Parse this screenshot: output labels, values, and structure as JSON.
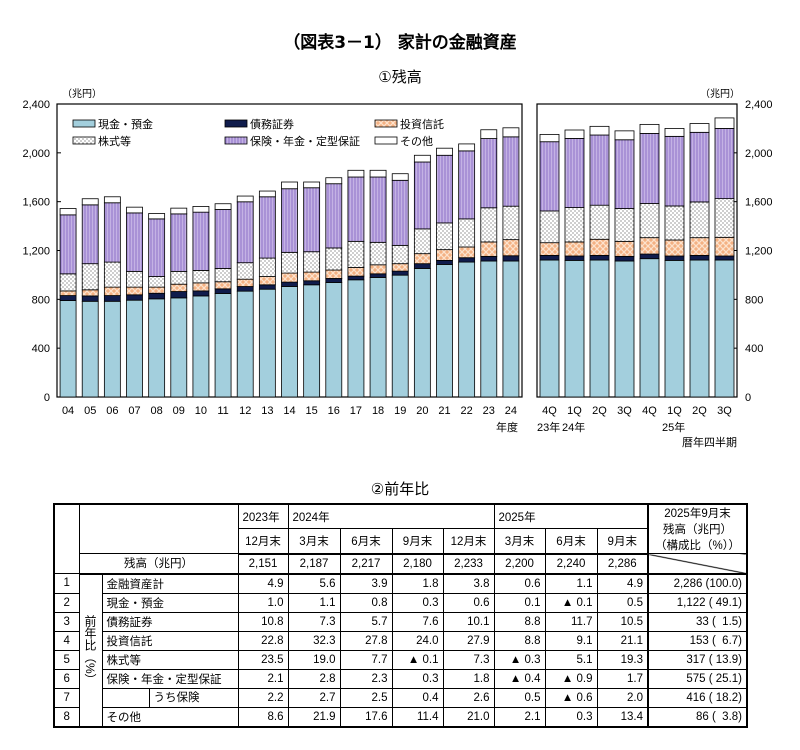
{
  "title": "（図表3－1） 家計の金融資産",
  "chart_section_title": "①残高",
  "table_section_title": "②前年比",
  "colors": {
    "cash": "#a3cfdd",
    "bonds": "#101c4c",
    "investment_trusts": "#f4b183",
    "stocks": "#ffffff",
    "insurance": "#b8a3dc",
    "other": "#ffffff"
  },
  "legend": [
    "現金・預金",
    "債務証券",
    "投資信託",
    "株式等",
    "保険・年金・定型保証",
    "その他"
  ],
  "chart_data": [
    {
      "type": "bar",
      "stacked": true,
      "unit_label": "（兆円）",
      "xlabel": "年度",
      "ylim": [
        0,
        2400
      ],
      "yticks": [
        "0",
        "400",
        "800",
        "1,200",
        "1,600",
        "2,000",
        "2,400"
      ],
      "categories": [
        "04",
        "05",
        "06",
        "07",
        "08",
        "09",
        "10",
        "11",
        "12",
        "13",
        "14",
        "15",
        "16",
        "17",
        "18",
        "19",
        "20",
        "21",
        "22",
        "23",
        "24"
      ],
      "series": [
        {
          "name": "現金・預金",
          "values": [
            790,
            784,
            784,
            793,
            804,
            812,
            828,
            848,
            867,
            883,
            905,
            919,
            938,
            960,
            979,
            998,
            1053,
            1086,
            1105,
            1114,
            1114
          ]
        },
        {
          "name": "債務証券",
          "values": [
            41,
            44,
            47,
            44,
            46,
            52,
            41,
            38,
            38,
            36,
            36,
            33,
            33,
            30,
            30,
            33,
            39,
            33,
            36,
            38,
            43
          ]
        },
        {
          "name": "投資信託",
          "values": [
            38,
            50,
            69,
            63,
            50,
            60,
            66,
            58,
            60,
            68,
            74,
            71,
            69,
            71,
            74,
            61,
            82,
            88,
            88,
            118,
            132
          ]
        },
        {
          "name": "株式等",
          "values": [
            140,
            214,
            205,
            129,
            87,
            105,
            102,
            109,
            135,
            151,
            170,
            167,
            181,
            214,
            184,
            150,
            203,
            219,
            230,
            280,
            274
          ]
        },
        {
          "name": "保険・年金・定型保証",
          "values": [
            483,
            482,
            486,
            479,
            472,
            471,
            477,
            483,
            499,
            502,
            521,
            524,
            526,
            527,
            535,
            533,
            548,
            554,
            557,
            567,
            568
          ]
        },
        {
          "name": "その他",
          "values": [
            52,
            50,
            49,
            47,
            44,
            47,
            47,
            47,
            47,
            47,
            55,
            47,
            49,
            55,
            55,
            54,
            55,
            58,
            57,
            72,
            74
          ]
        }
      ]
    },
    {
      "type": "bar",
      "stacked": true,
      "unit_label": "（兆円）",
      "xlabel": "暦年四半期",
      "ylim": [
        0,
        2400
      ],
      "yticks": [
        "0",
        "400",
        "800",
        "1,200",
        "1,600",
        "2,000",
        "2,400"
      ],
      "categories": [
        "4Q",
        "1Q",
        "2Q",
        "3Q",
        "4Q",
        "1Q",
        "2Q",
        "3Q"
      ],
      "year_labels": [
        "23年",
        "24年",
        "25年"
      ],
      "series": [
        {
          "name": "現金・預金",
          "values": [
            1122,
            1119,
            1122,
            1114,
            1133,
            1119,
            1122,
            1122
          ]
        },
        {
          "name": "債務証券",
          "values": [
            38,
            36,
            38,
            38,
            38,
            36,
            38,
            33
          ]
        },
        {
          "name": "投資信託",
          "values": [
            104,
            115,
            132,
            123,
            134,
            131,
            145,
            153
          ]
        },
        {
          "name": "株式等",
          "values": [
            260,
            282,
            279,
            269,
            280,
            279,
            293,
            317
          ]
        },
        {
          "name": "保険・年金・定型保証",
          "values": [
            567,
            566,
            575,
            563,
            574,
            570,
            570,
            575
          ]
        },
        {
          "name": "その他",
          "values": [
            60,
            69,
            71,
            73,
            74,
            65,
            72,
            86
          ]
        }
      ]
    }
  ],
  "table": {
    "year_groups": [
      {
        "label": "2023年",
        "span": 1
      },
      {
        "label": "2024年",
        "span": 4
      },
      {
        "label": "2025年",
        "span": 3
      }
    ],
    "months": [
      "12月末",
      "3月末",
      "6月末",
      "9月末",
      "12月末",
      "3月末",
      "6月末",
      "9月末"
    ],
    "last_header": [
      "2025年9月末",
      "残高（兆円）",
      "（構成比（%））"
    ],
    "balance_label": "残高（兆円）",
    "balance_values": [
      "2,151",
      "2,187",
      "2,217",
      "2,180",
      "2,233",
      "2,200",
      "2,240",
      "2,286"
    ],
    "side_label": "前年比（%）",
    "rows": [
      {
        "num": "1",
        "label": "金融資産計",
        "values": [
          "4.9",
          "5.6",
          "3.9",
          "1.8",
          "3.8",
          "0.6",
          "1.1",
          "4.9"
        ],
        "last": "2,286 (100.0)"
      },
      {
        "num": "2",
        "label": "現金・預金",
        "values": [
          "1.0",
          "1.1",
          "0.8",
          "0.3",
          "0.6",
          "0.1",
          "▲ 0.1",
          "0.5"
        ],
        "last": "1,122 ( 49.1)"
      },
      {
        "num": "3",
        "label": "債務証券",
        "values": [
          "10.8",
          "7.3",
          "5.7",
          "7.6",
          "10.1",
          "8.8",
          "11.7",
          "10.5"
        ],
        "last": "33 (  1.5)"
      },
      {
        "num": "4",
        "label": "投資信託",
        "values": [
          "22.8",
          "32.3",
          "27.8",
          "24.0",
          "27.9",
          "8.8",
          "9.1",
          "21.1"
        ],
        "last": "153 (  6.7)"
      },
      {
        "num": "5",
        "label": "株式等",
        "values": [
          "23.5",
          "19.0",
          "7.7",
          "▲ 0.1",
          "7.3",
          "▲ 0.3",
          "5.1",
          "19.3"
        ],
        "last": "317 ( 13.9)"
      },
      {
        "num": "6",
        "label": "保険・年金・定型保証",
        "values": [
          "2.1",
          "2.8",
          "2.3",
          "0.3",
          "1.8",
          "▲ 0.4",
          "▲ 0.9",
          "1.7"
        ],
        "last": "575 ( 25.1)"
      },
      {
        "num": "7",
        "label": "うち保険",
        "indent": true,
        "values": [
          "2.2",
          "2.7",
          "2.5",
          "0.4",
          "2.6",
          "0.5",
          "▲ 0.6",
          "2.0"
        ],
        "last": "416 ( 18.2)"
      },
      {
        "num": "8",
        "label": "その他",
        "values": [
          "8.6",
          "21.9",
          "17.6",
          "11.4",
          "21.0",
          "2.1",
          "0.3",
          "13.4"
        ],
        "last": "86 (  3.8)"
      }
    ]
  }
}
